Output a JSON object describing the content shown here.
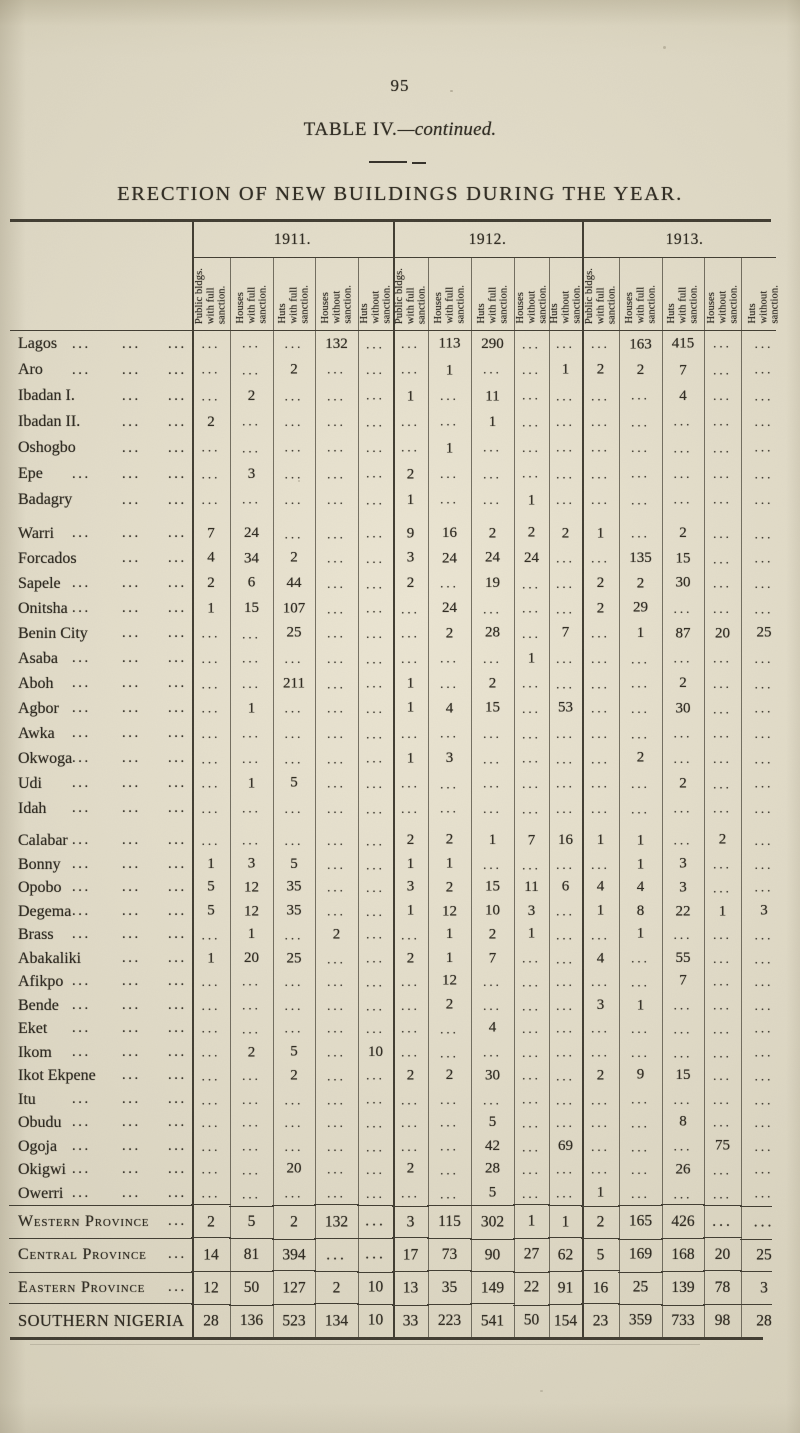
{
  "page": {
    "page_number": "95",
    "table_title": "TABLE IV.",
    "table_title_continued": "—continued.",
    "heading": "ERECTION OF NEW BUILDINGS DURING THE YEAR.",
    "paper_color": "#dcd7c5",
    "ink_color": "#302c23"
  },
  "table": {
    "year_groups": [
      "1911.",
      "1912.",
      "1913."
    ],
    "column_headers": [
      "Public bldgs.\nwith full\nsanction.",
      "Houses\nwith full\nsanction.",
      "Huts\nwith full\nsanction.",
      "Houses\nwithout\nsanction.",
      "Huts\nwithout\nsanction."
    ],
    "empty_cell_mark": "...",
    "blocks": [
      {
        "rows": [
          {
            "name": "Lagos",
            "dots": 3,
            "cells": [
              "...",
              "...",
              "...",
              "132",
              "...",
              "...",
              "113",
              "290",
              "...",
              "...",
              "...",
              "163",
              "415",
              "...",
              "..."
            ]
          },
          {
            "name": "Aro",
            "dots": 3,
            "cells": [
              "...",
              "...",
              "2",
              "...",
              "...",
              "...",
              "1",
              "...",
              "...",
              "1",
              "2",
              "2",
              "7",
              "...",
              "..."
            ]
          },
          {
            "name": "Ibadan I.",
            "dots": 2,
            "cells": [
              "...",
              "2",
              "...",
              "...",
              "...",
              "1",
              "...",
              "11",
              "...",
              "...",
              "...",
              "...",
              "4",
              "...",
              "..."
            ]
          },
          {
            "name": "Ibadan II.",
            "dots": 2,
            "cells": [
              "2",
              "...",
              "...",
              "...",
              "...",
              "...",
              "...",
              "1",
              "...",
              "...",
              "...",
              "...",
              "...",
              "...",
              "..."
            ]
          },
          {
            "name": "Oshogbo",
            "dots": 2,
            "cells": [
              "...",
              "...",
              "...",
              "...",
              "...",
              "...",
              "1",
              "...",
              "...",
              "...",
              "...",
              "...",
              "...",
              "...",
              "..."
            ]
          },
          {
            "name": "Epe",
            "dots": 3,
            "cells": [
              "...",
              "3",
              "...",
              "...",
              "...",
              "2",
              "...",
              "...",
              "...",
              "...",
              "...",
              "...",
              "...",
              "...",
              "..."
            ]
          },
          {
            "name": "Badagry",
            "dots": 2,
            "cells": [
              "...",
              "...",
              "...",
              "...",
              "...",
              "1",
              "...",
              "...",
              "1",
              "...",
              "...",
              "...",
              "...",
              "...",
              "..."
            ]
          }
        ]
      },
      {
        "rows": [
          {
            "name": "Warri",
            "dots": 3,
            "cells": [
              "7",
              "24",
              "...",
              "...",
              "...",
              "9",
              "16",
              "2",
              "2",
              "2",
              "1",
              "...",
              "2",
              "...",
              "..."
            ]
          },
          {
            "name": "Forcados",
            "dots": 2,
            "cells": [
              "4",
              "34",
              "2",
              "...",
              "...",
              "3",
              "24",
              "24",
              "24",
              "...",
              "...",
              "135",
              "15",
              "...",
              "..."
            ]
          },
          {
            "name": "Sapele",
            "dots": 3,
            "cells": [
              "2",
              "6",
              "44",
              "...",
              "...",
              "2",
              "...",
              "19",
              "...",
              "...",
              "2",
              "2",
              "30",
              "...",
              "..."
            ]
          },
          {
            "name": "Onitsha",
            "dots": 3,
            "cells": [
              "1",
              "15",
              "107",
              "...",
              "...",
              "...",
              "24",
              "...",
              "...",
              "...",
              "2",
              "29",
              "...",
              "...",
              "..."
            ]
          },
          {
            "name": "Benin City",
            "dots": 2,
            "cells": [
              "...",
              "...",
              "25",
              "...",
              "...",
              "...",
              "2",
              "28",
              "...",
              "7",
              "...",
              "1",
              "87",
              "20",
              "25"
            ]
          },
          {
            "name": "Asaba",
            "dots": 3,
            "cells": [
              "...",
              "...",
              "...",
              "...",
              "...",
              "...",
              "...",
              "...",
              "1",
              "...",
              "...",
              "...",
              "...",
              "...",
              "..."
            ]
          },
          {
            "name": "Aboh",
            "dots": 3,
            "cells": [
              "...",
              "...",
              "211",
              "...",
              "...",
              "1",
              "...",
              "2",
              "...",
              "...",
              "...",
              "...",
              "2",
              "...",
              "..."
            ]
          },
          {
            "name": "Agbor",
            "dots": 3,
            "cells": [
              "...",
              "1",
              "...",
              "...",
              "...",
              "1",
              "4",
              "15",
              "...",
              "53",
              "...",
              "...",
              "30",
              "...",
              "..."
            ]
          },
          {
            "name": "Awka",
            "dots": 3,
            "cells": [
              "...",
              "...",
              "...",
              "...",
              "...",
              "...",
              "...",
              "...",
              "...",
              "...",
              "...",
              "...",
              "...",
              "...",
              "..."
            ]
          },
          {
            "name": "Okwoga",
            "dots": 3,
            "cells": [
              "...",
              "...",
              "...",
              "...",
              "...",
              "1",
              "3",
              "...",
              "...",
              "...",
              "...",
              "2",
              "...",
              "...",
              "..."
            ]
          },
          {
            "name": "Udi",
            "dots": 3,
            "cells": [
              "...",
              "1",
              "5",
              "...",
              "...",
              "...",
              "...",
              "...",
              "...",
              "...",
              "...",
              "...",
              "2",
              "...",
              "..."
            ]
          },
          {
            "name": "Idah",
            "dots": 3,
            "cells": [
              "...",
              "...",
              "...",
              "...",
              "...",
              "...",
              "...",
              "...",
              "...",
              "...",
              "...",
              "...",
              "...",
              "...",
              "..."
            ]
          }
        ]
      },
      {
        "rows": [
          {
            "name": "Calabar",
            "dots": 3,
            "cells": [
              "...",
              "...",
              "...",
              "...",
              "...",
              "2",
              "2",
              "1",
              "7",
              "16",
              "1",
              "1",
              "...",
              "2",
              "..."
            ]
          },
          {
            "name": "Bonny",
            "dots": 3,
            "cells": [
              "1",
              "3",
              "5",
              "...",
              "...",
              "1",
              "1",
              "...",
              "...",
              "...",
              "...",
              "1",
              "3",
              "...",
              "..."
            ]
          },
          {
            "name": "Opobo",
            "dots": 3,
            "cells": [
              "5",
              "12",
              "35",
              "...",
              "...",
              "3",
              "2",
              "15",
              "11",
              "6",
              "4",
              "4",
              "3",
              "...",
              "..."
            ]
          },
          {
            "name": "Degema",
            "dots": 3,
            "cells": [
              "5",
              "12",
              "35",
              "...",
              "...",
              "1",
              "12",
              "10",
              "3",
              "...",
              "1",
              "8",
              "22",
              "1",
              "3"
            ]
          },
          {
            "name": "Brass",
            "dots": 3,
            "cells": [
              "...",
              "1",
              "...",
              "2",
              "...",
              "...",
              "1",
              "2",
              "1",
              "...",
              "...",
              "1",
              "...",
              "...",
              "..."
            ]
          },
          {
            "name": "Abakaliki",
            "dots": 2,
            "cells": [
              "1",
              "20",
              "25",
              "...",
              "...",
              "2",
              "1",
              "7",
              "...",
              "...",
              "4",
              "...",
              "55",
              "...",
              "..."
            ]
          },
          {
            "name": "Afikpo",
            "dots": 3,
            "cells": [
              "...",
              "...",
              "...",
              "...",
              "...",
              "...",
              "12",
              "...",
              "...",
              "...",
              "...",
              "...",
              "7",
              "...",
              "..."
            ]
          },
          {
            "name": "Bende",
            "dots": 3,
            "cells": [
              "...",
              "...",
              "...",
              "...",
              "...",
              "...",
              "2",
              "...",
              "...",
              "...",
              "3",
              "1",
              "...",
              "...",
              "..."
            ]
          },
          {
            "name": "Eket",
            "dots": 3,
            "cells": [
              "...",
              "...",
              "...",
              "...",
              "...",
              "...",
              "...",
              "4",
              "...",
              "...",
              "...",
              "...",
              "...",
              "...",
              "..."
            ]
          },
          {
            "name": "Ikom",
            "dots": 3,
            "cells": [
              "...",
              "2",
              "5",
              "...",
              "10",
              "...",
              "...",
              "...",
              "...",
              "...",
              "...",
              "...",
              "...",
              "...",
              "..."
            ]
          },
          {
            "name": "Ikot Ekpene",
            "dots": 2,
            "cells": [
              "...",
              "...",
              "2",
              "...",
              "...",
              "2",
              "2",
              "30",
              "...",
              "...",
              "2",
              "9",
              "15",
              "...",
              "..."
            ]
          },
          {
            "name": "Itu",
            "dots": 3,
            "cells": [
              "...",
              "...",
              "...",
              "...",
              "...",
              "...",
              "...",
              "...",
              "...",
              "...",
              "...",
              "...",
              "...",
              "...",
              "..."
            ]
          },
          {
            "name": "Obudu",
            "dots": 3,
            "cells": [
              "...",
              "...",
              "...",
              "...",
              "...",
              "...",
              "...",
              "5",
              "...",
              "...",
              "...",
              "...",
              "8",
              "...",
              "..."
            ]
          },
          {
            "name": "Ogoja",
            "dots": 3,
            "cells": [
              "...",
              "...",
              "...",
              "...",
              "...",
              "...",
              "...",
              "42",
              "...",
              "69",
              "...",
              "...",
              "...",
              "75",
              "..."
            ]
          },
          {
            "name": "Okigwi",
            "dots": 3,
            "cells": [
              "...",
              "...",
              "20",
              "...",
              "...",
              "2",
              "...",
              "28",
              "...",
              "...",
              "...",
              "...",
              "26",
              "...",
              "..."
            ]
          },
          {
            "name": "Owerri",
            "dots": 3,
            "cells": [
              "...",
              "...",
              "...",
              "...",
              "...",
              "...",
              "...",
              "5",
              "...",
              "...",
              "1",
              "...",
              "...",
              "...",
              "..."
            ]
          }
        ]
      }
    ],
    "summary_rows": [
      {
        "name": "Western Province",
        "style": "smallcaps",
        "dots": 1,
        "cells": [
          "2",
          "5",
          "2",
          "132",
          "...",
          "3",
          "115",
          "302",
          "1",
          "1",
          "2",
          "165",
          "426",
          "...",
          "..."
        ]
      },
      {
        "name": "Central Province",
        "style": "smallcaps",
        "dots": 1,
        "cells": [
          "14",
          "81",
          "394",
          "...",
          "...",
          "17",
          "73",
          "90",
          "27",
          "62",
          "5",
          "169",
          "168",
          "20",
          "25"
        ]
      },
      {
        "name": "Eastern Province",
        "style": "smallcaps",
        "dots": 1,
        "cells": [
          "12",
          "50",
          "127",
          "2",
          "10",
          "13",
          "35",
          "149",
          "22",
          "91",
          "16",
          "25",
          "139",
          "78",
          "3"
        ]
      },
      {
        "name": "SOUTHERN NIGERIA",
        "style": "caps",
        "dots": 0,
        "cells": [
          "28",
          "136",
          "523",
          "134",
          "10",
          "33",
          "223",
          "541",
          "50",
          "154",
          "23",
          "359",
          "733",
          "98",
          "28"
        ]
      }
    ]
  }
}
